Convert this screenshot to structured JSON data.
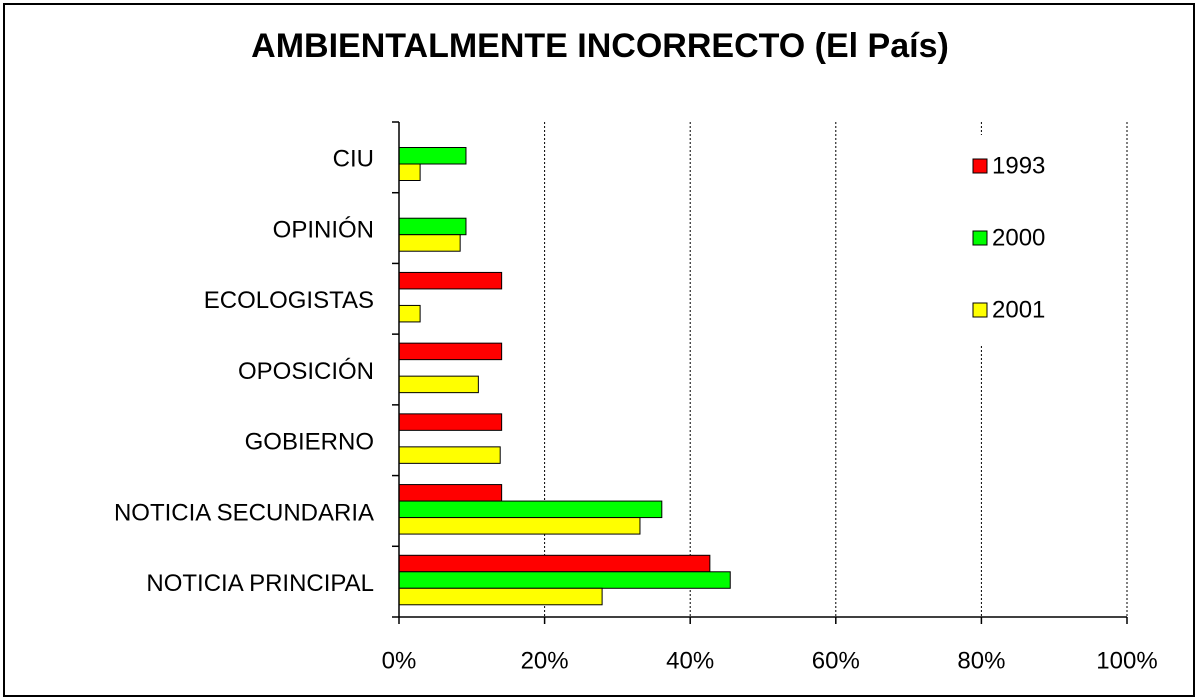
{
  "chart_data": {
    "type": "hbar",
    "title": "AMBIENTALMENTE INCORRECTO (El País)",
    "categories": [
      "CIU",
      "OPINIÓN",
      "ECOLOGISTAS",
      "OPOSICIÓN",
      "GOBIERNO",
      "NOTICIA SECUNDARIA",
      "NOTICIA PRINCIPAL"
    ],
    "series": [
      {
        "name": "1993",
        "color": "#ff0000",
        "values": [
          0,
          0,
          14.1,
          14.1,
          14.1,
          14.1,
          42.7
        ]
      },
      {
        "name": "2000",
        "color": "#00ff00",
        "values": [
          9.2,
          9.2,
          0,
          0,
          0,
          36.1,
          45.5
        ]
      },
      {
        "name": "2001",
        "color": "#ffff00",
        "values": [
          2.9,
          8.4,
          2.9,
          10.9,
          13.9,
          33.1,
          27.9
        ]
      }
    ],
    "xlim": [
      0,
      100
    ],
    "xticks": [
      {
        "value": 0,
        "label": "0%"
      },
      {
        "value": 20,
        "label": "20%"
      },
      {
        "value": 40,
        "label": "40%"
      },
      {
        "value": 60,
        "label": "60%"
      },
      {
        "value": 80,
        "label": "80%"
      },
      {
        "value": 100,
        "label": "100%"
      }
    ],
    "grid": true,
    "legend": "upper right"
  }
}
